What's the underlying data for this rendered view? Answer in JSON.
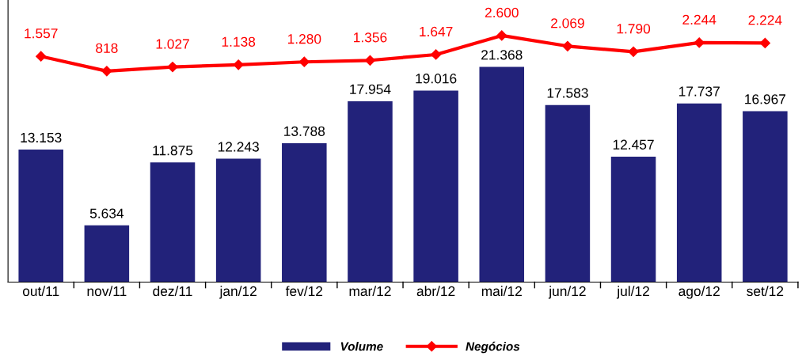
{
  "chart_data": {
    "type": "bar",
    "categories": [
      "out/11",
      "nov/11",
      "dez/11",
      "jan/12",
      "fev/12",
      "mar/12",
      "abr/12",
      "mai/12",
      "jun/12",
      "jul/12",
      "ago/12",
      "set/12"
    ],
    "series": [
      {
        "name": "Volume",
        "color": "#22227a",
        "values": [
          13153,
          5634,
          11875,
          12243,
          13788,
          17954,
          19016,
          21368,
          17583,
          12457,
          17737,
          16967
        ],
        "value_labels": [
          "13.153",
          "5.634",
          "11.875",
          "12.243",
          "13.788",
          "17.954",
          "19.016",
          "21.368",
          "17.583",
          "12.457",
          "17.737",
          "16.967"
        ]
      },
      {
        "name": "Negócios",
        "type": "line",
        "axis": "y2",
        "color": "#ff0000",
        "marker": "diamond",
        "values": [
          1557,
          818,
          1027,
          1138,
          1280,
          1356,
          1647,
          2600,
          2069,
          1790,
          2244,
          2224
        ],
        "value_labels": [
          "1.557",
          "818",
          "1.027",
          "1.138",
          "1.280",
          "1.356",
          "1.647",
          "2.600",
          "2.069",
          "1.790",
          "2.244",
          "2.224"
        ]
      }
    ],
    "ylim": [
      0,
      28000
    ],
    "y2lim": [
      -9750,
      4380
    ],
    "tick_labels": "x",
    "legend": "bottom",
    "grid": false
  }
}
